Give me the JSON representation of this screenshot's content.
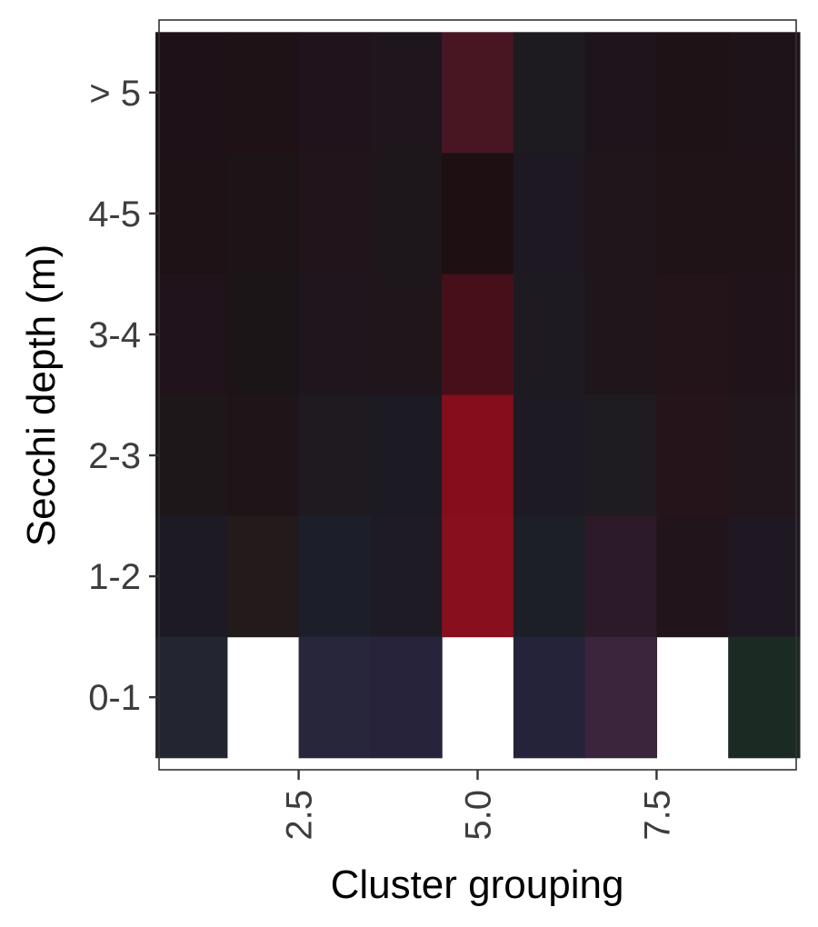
{
  "chart_data": {
    "type": "heatmap",
    "title": "",
    "xlabel": "Cluster grouping",
    "ylabel": "Secchi depth (m)",
    "x": [
      1,
      2,
      3,
      4,
      5,
      6,
      7,
      8,
      9
    ],
    "x_ticks": [
      "2.5",
      "5.0",
      "7.5"
    ],
    "x_tick_values": [
      2.5,
      5.0,
      7.5
    ],
    "xlim": [
      0.55,
      9.45
    ],
    "y_categories": [
      "0-1",
      "1-2",
      "2-3",
      "3-4",
      "4-5",
      "> 5"
    ],
    "grid": false,
    "legend": "none",
    "cells": [
      [
        "#1f1118",
        "#1f1216",
        "#20131c",
        "#1e151d",
        "#471622",
        "#1d1b20",
        "#1e141c",
        "#1f1217",
        "#1f131a"
      ],
      [
        "#1e1217",
        "#1c1416",
        "#21141b",
        "#1d161b",
        "#1d0f12",
        "#1e1822",
        "#1f151b",
        "#1f1318",
        "#1f1318"
      ],
      [
        "#20131b",
        "#1c1517",
        "#1e161c",
        "#1e161b",
        "#460f1a",
        "#1e1a22",
        "#1e161b",
        "#231419",
        "#20141a"
      ],
      [
        "#1e1719",
        "#1f1418",
        "#1e1a20",
        "#1c1a22",
        "#840e1b",
        "#1e1a24",
        "#1e1c20",
        "#251419",
        "#20161c"
      ],
      [
        "#1d1a24",
        "#231a1c",
        "#1c1f2a",
        "#1f1b24",
        "#880f1d",
        "#1d1f26",
        "#2d1a28",
        "#21141a",
        "#1f1822"
      ],
      [
        "#232631",
        null,
        "#28263a",
        "#26233a",
        null,
        "#24233a",
        "#3b253c",
        null,
        "#1b2b23"
      ]
    ]
  }
}
